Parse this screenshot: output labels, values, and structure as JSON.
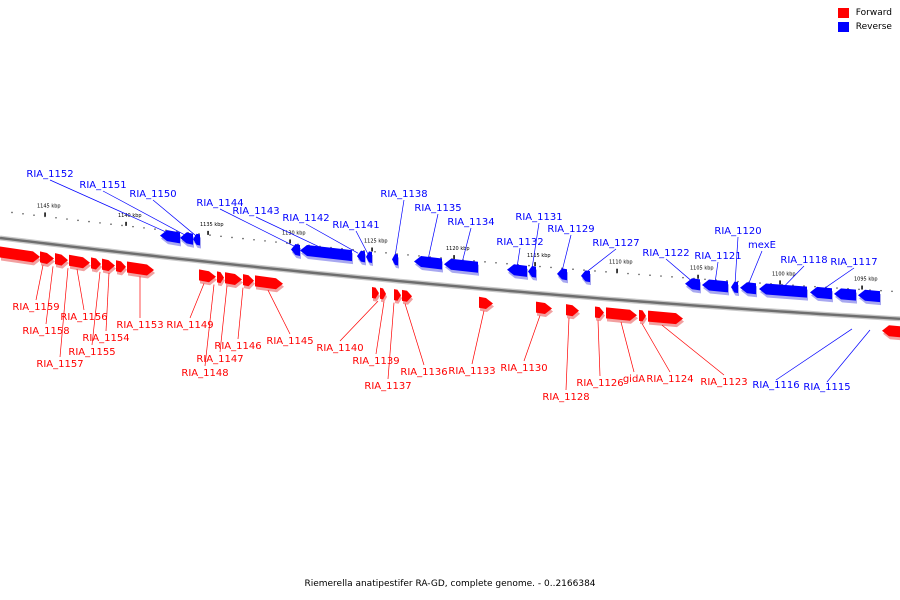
{
  "legend": {
    "forward": {
      "label": "Forward",
      "color": "#ff0000"
    },
    "reverse": {
      "label": "Reverse",
      "color": "#0000ff"
    }
  },
  "caption": "Riemerella anatipestifer RA-GD, complete genome. - 0..2166384",
  "ticks": [
    "1145 kbp",
    "1140 kbp",
    "1135 kbp",
    "1130 kbp",
    "1125 kbp",
    "1120 kbp",
    "1115 kbp",
    "1110 kbp",
    "1105 kbp",
    "1100 kbp",
    "1095 kbp"
  ],
  "reverse_genes": [
    "RIA_1152",
    "RIA_1151",
    "RIA_1150",
    "RIA_1144",
    "RIA_1143",
    "RIA_1142",
    "RIA_1141",
    "RIA_1138",
    "RIA_1135",
    "RIA_1134",
    "RIA_1132",
    "RIA_1131",
    "RIA_1129",
    "RIA_1127",
    "RIA_1122",
    "RIA_1121",
    "RIA_1120",
    "mexE",
    "RIA_1118",
    "RIA_1117",
    "RIA_1116",
    "RIA_1115"
  ],
  "forward_genes": [
    "RIA_1159",
    "RIA_1158",
    "RIA_1157",
    "RIA_1156",
    "RIA_1155",
    "RIA_1154",
    "RIA_1153",
    "RIA_1149",
    "RIA_1148",
    "RIA_1147",
    "RIA_1146",
    "RIA_1145",
    "RIA_1140",
    "RIA_1139",
    "RIA_1137",
    "RIA_1136",
    "RIA_1133",
    "RIA_1130",
    "RIA_1128",
    "RIA_1126",
    "gidA",
    "RIA_1124",
    "RIA_1123"
  ]
}
